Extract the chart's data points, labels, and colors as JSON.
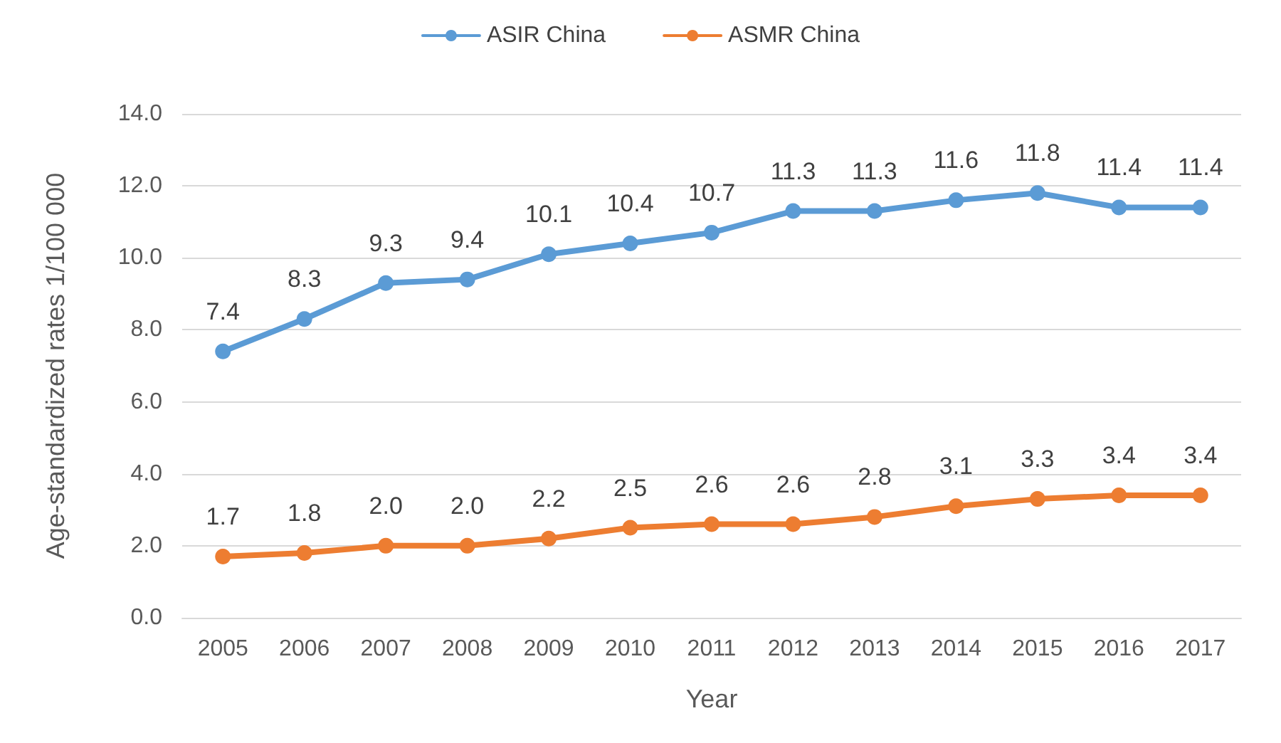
{
  "chart_data": {
    "type": "line",
    "xlabel": "Year",
    "ylabel": "Age-standardized rates 1/100 000",
    "categories": [
      "2005",
      "2006",
      "2007",
      "2008",
      "2009",
      "2010",
      "2011",
      "2012",
      "2013",
      "2014",
      "2015",
      "2016",
      "2017"
    ],
    "series": [
      {
        "name": "ASIR China",
        "color": "#5b9bd5",
        "values": [
          7.4,
          8.3,
          9.3,
          9.4,
          10.1,
          10.4,
          10.7,
          11.3,
          11.3,
          11.6,
          11.8,
          11.4,
          11.4
        ],
        "value_labels": [
          "7.4",
          "8.3",
          "9.3",
          "9.4",
          "10.1",
          "10.4",
          "10.7",
          "11.3",
          "11.3",
          "11.6",
          "11.8",
          "11.4",
          "11.4"
        ]
      },
      {
        "name": "ASMR China",
        "color": "#ed7d31",
        "values": [
          1.7,
          1.8,
          2.0,
          2.0,
          2.2,
          2.5,
          2.6,
          2.6,
          2.8,
          3.1,
          3.3,
          3.4,
          3.4
        ],
        "value_labels": [
          "1.7",
          "1.8",
          "2.0",
          "2.0",
          "2.2",
          "2.5",
          "2.6",
          "2.6",
          "2.8",
          "3.1",
          "3.3",
          "3.4",
          "3.4"
        ]
      }
    ],
    "ylim": [
      0,
      14
    ],
    "yticks": [
      {
        "value": 0,
        "label": "0.0"
      },
      {
        "value": 2,
        "label": "2.0"
      },
      {
        "value": 4,
        "label": "4.0"
      },
      {
        "value": 6,
        "label": "6.0"
      },
      {
        "value": 8,
        "label": "8.0"
      },
      {
        "value": 10,
        "label": "10.0"
      },
      {
        "value": 12,
        "label": "12.0"
      },
      {
        "value": 14,
        "label": "14.0"
      }
    ],
    "grid": "y",
    "legend": "top",
    "marker": "circle",
    "line_style": "solid"
  }
}
